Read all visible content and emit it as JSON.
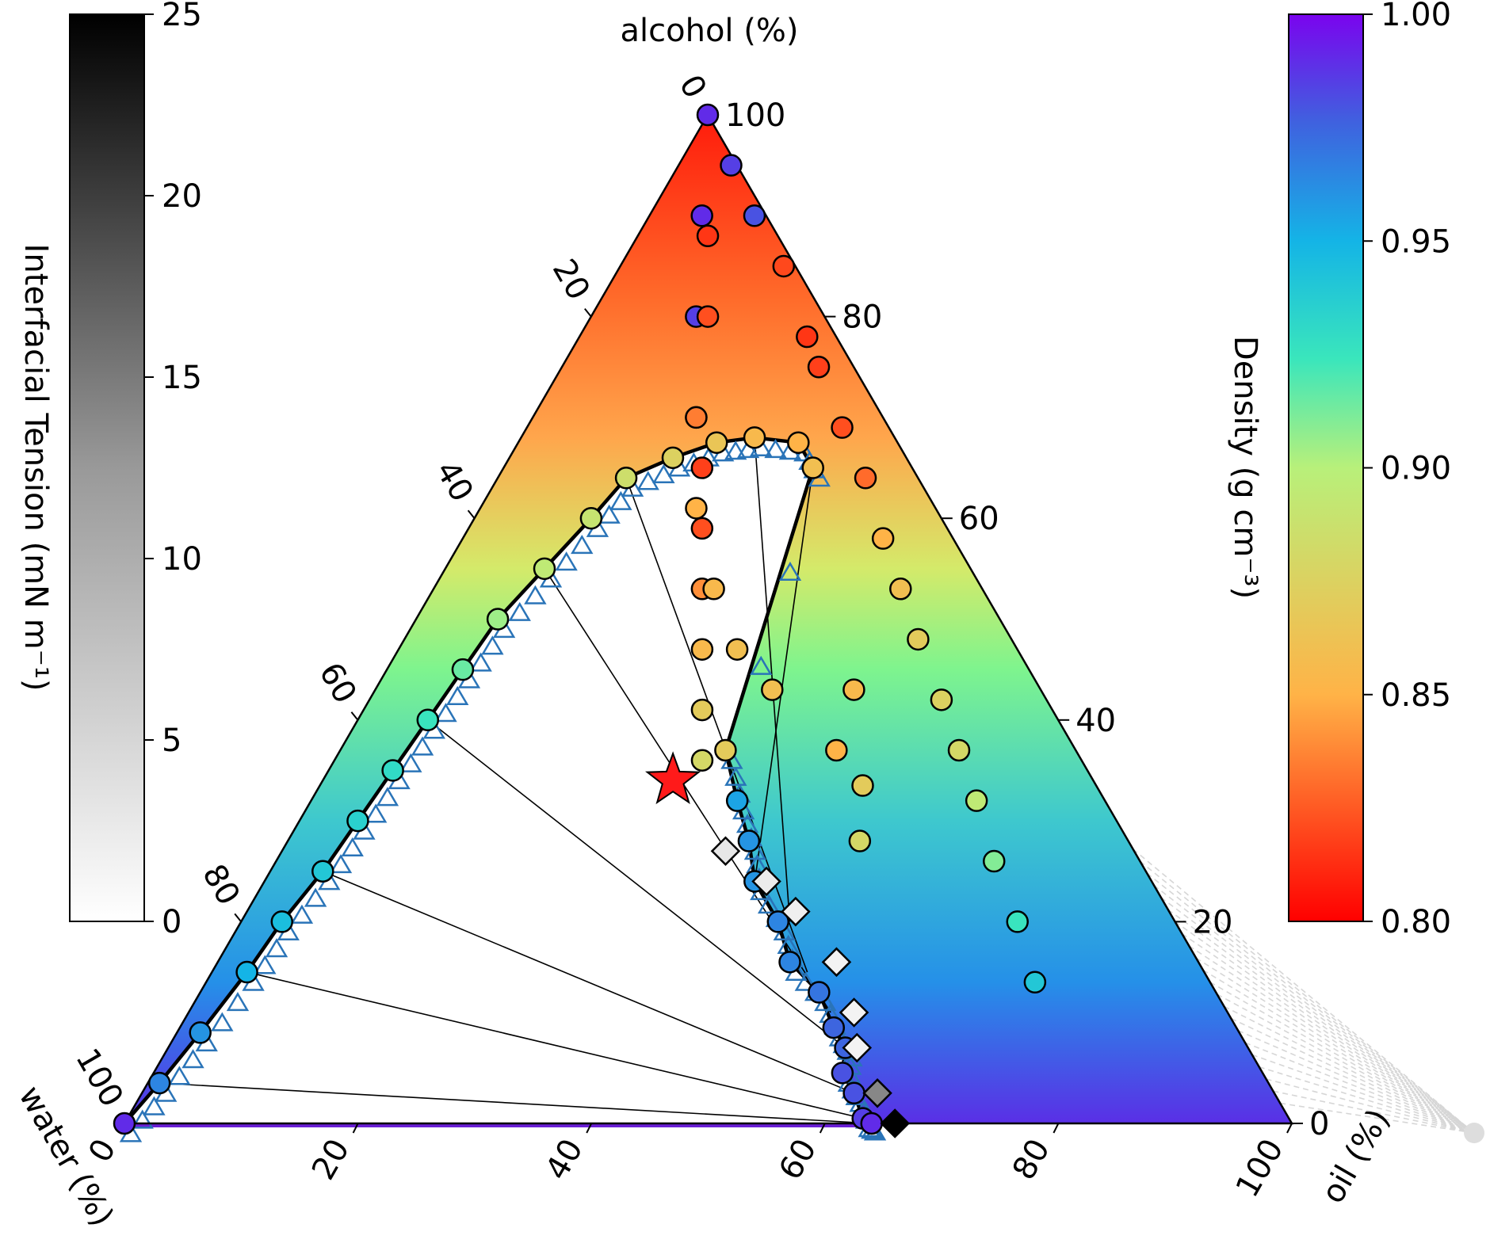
{
  "chart_data": {
    "type": "scatter",
    "subtype": "ternary",
    "axes": {
      "top": {
        "label": "alcohol (%)",
        "ticks": [
          0,
          20,
          40,
          60,
          80,
          100
        ],
        "range": [
          0,
          100
        ]
      },
      "left": {
        "label": "water (%)",
        "ticks": [
          0,
          20,
          40,
          60,
          80,
          100
        ],
        "range": [
          0,
          100
        ]
      },
      "right": {
        "label": "oil (%)",
        "ticks": [
          0,
          20,
          40,
          60,
          80,
          100
        ],
        "range": [
          0,
          100
        ]
      }
    },
    "colorbars": [
      {
        "label": "Interfacial Tension (mN m⁻¹)",
        "ticks": [
          "0",
          "5",
          "10",
          "15",
          "20",
          "25"
        ],
        "range": [
          0,
          25
        ],
        "colormap": "grey"
      },
      {
        "label": "Density (g cm⁻³)",
        "ticks": [
          "0.80",
          "0.85",
          "0.90",
          "0.95",
          "1.00"
        ],
        "range": [
          0.8,
          1.0
        ],
        "colormap": "rainbow"
      }
    ],
    "colors": {
      "binodal": "#000000",
      "triangles": "#2a74b8",
      "star": "#ff1a1a",
      "tieline": "#000000",
      "projection": "#d6d6d6"
    },
    "series": [
      {
        "kind": "edge-circle",
        "points": [
          {
            "oil": 0,
            "alcohol": 100,
            "density": 0.99
          },
          {
            "oil": 4.5,
            "alcohol": 95,
            "density": 0.985
          },
          {
            "oil": 9,
            "alcohol": 90,
            "density": 0.98
          },
          {
            "oil": 14,
            "alcohol": 85,
            "density": 0.82
          },
          {
            "oil": 19.5,
            "alcohol": 78,
            "density": 0.815
          },
          {
            "oil": 22,
            "alcohol": 75,
            "density": 0.818
          },
          {
            "oil": 27,
            "alcohol": 69,
            "density": 0.822
          },
          {
            "oil": 31.5,
            "alcohol": 64,
            "density": 0.83
          },
          {
            "oil": 36,
            "alcohol": 58,
            "density": 0.85
          },
          {
            "oil": 40,
            "alcohol": 53,
            "density": 0.86
          },
          {
            "oil": 44,
            "alcohol": 48,
            "density": 0.87
          },
          {
            "oil": 49,
            "alcohol": 42,
            "density": 0.875
          },
          {
            "oil": 53,
            "alcohol": 37,
            "density": 0.88
          },
          {
            "oil": 57,
            "alcohol": 32,
            "density": 0.895
          },
          {
            "oil": 61.5,
            "alcohol": 26,
            "density": 0.91
          },
          {
            "oil": 66.5,
            "alcohol": 20,
            "density": 0.925
          },
          {
            "oil": 71,
            "alcohol": 14,
            "density": 0.94
          },
          {
            "oil": 4.5,
            "alcohol": 90,
            "density": 0.99
          },
          {
            "oil": 9,
            "alcohol": 80,
            "density": 0.985
          },
          {
            "oil": 14,
            "alcohol": 70,
            "density": 0.82
          },
          {
            "oil": 17,
            "alcohol": 65,
            "density": 0.818
          },
          {
            "oil": 20,
            "alcohol": 59,
            "density": 0.822
          },
          {
            "oil": 23,
            "alcohol": 53,
            "density": 0.84
          },
          {
            "oil": 26,
            "alcohol": 47,
            "density": 0.855
          },
          {
            "oil": 29,
            "alcohol": 41,
            "density": 0.87
          },
          {
            "oil": 31.5,
            "alcohol": 36,
            "density": 0.88
          }
        ]
      },
      {
        "kind": "interior-circle",
        "points": [
          {
            "oil": 6,
            "alcohol": 88,
            "density": 0.815
          },
          {
            "oil": 10,
            "alcohol": 80,
            "density": 0.822
          },
          {
            "oil": 14,
            "alcohol": 70,
            "density": 0.835
          },
          {
            "oil": 18.5,
            "alcohol": 61,
            "density": 0.85
          },
          {
            "oil": 24,
            "alcohol": 53,
            "density": 0.855
          },
          {
            "oil": 29,
            "alcohol": 47,
            "density": 0.86
          },
          {
            "oil": 34,
            "alcohol": 43,
            "density": 0.86
          },
          {
            "oil": 41,
            "alcohol": 43,
            "density": 0.855
          },
          {
            "oil": 42.5,
            "alcohol": 37,
            "density": 0.85
          },
          {
            "oil": 46.5,
            "alcohol": 33.5,
            "density": 0.87
          },
          {
            "oil": 49,
            "alcohol": 28,
            "density": 0.88
          }
        ]
      },
      {
        "kind": "binodal-circle",
        "points": [
          {
            "oil": 0,
            "alcohol": 0,
            "density": 0.99
          },
          {
            "oil": 1,
            "alcohol": 4,
            "density": 0.965
          },
          {
            "oil": 2,
            "alcohol": 9,
            "density": 0.96
          },
          {
            "oil": 3,
            "alcohol": 15,
            "density": 0.95
          },
          {
            "oil": 3.5,
            "alcohol": 20,
            "density": 0.945
          },
          {
            "oil": 4.5,
            "alcohol": 25,
            "density": 0.94
          },
          {
            "oil": 5,
            "alcohol": 30,
            "density": 0.935
          },
          {
            "oil": 5.5,
            "alcohol": 35,
            "density": 0.93
          },
          {
            "oil": 6,
            "alcohol": 40,
            "density": 0.925
          },
          {
            "oil": 6.5,
            "alcohol": 45,
            "density": 0.915
          },
          {
            "oil": 7,
            "alcohol": 50,
            "density": 0.905
          },
          {
            "oil": 8.5,
            "alcohol": 55,
            "density": 0.895
          },
          {
            "oil": 10,
            "alcohol": 60,
            "density": 0.89
          },
          {
            "oil": 11,
            "alcohol": 64,
            "density": 0.885
          },
          {
            "oil": 14,
            "alcohol": 66,
            "density": 0.875
          },
          {
            "oil": 17,
            "alcohol": 67.5,
            "density": 0.865
          },
          {
            "oil": 20,
            "alcohol": 68,
            "density": 0.855
          },
          {
            "oil": 24,
            "alcohol": 67.5,
            "density": 0.85
          },
          {
            "oil": 26.5,
            "alcohol": 65,
            "density": 0.86
          },
          {
            "oil": 33,
            "alcohol": 37,
            "density": 0.87
          },
          {
            "oil": 36.5,
            "alcohol": 32,
            "density": 0.955
          },
          {
            "oil": 39.5,
            "alcohol": 28,
            "density": 0.96
          },
          {
            "oil": 42,
            "alcohol": 24,
            "density": 0.96
          },
          {
            "oil": 46,
            "alcohol": 20,
            "density": 0.965
          },
          {
            "oil": 49,
            "alcohol": 16,
            "density": 0.965
          },
          {
            "oil": 53,
            "alcohol": 13,
            "density": 0.97
          },
          {
            "oil": 56,
            "alcohol": 9.5,
            "density": 0.975
          },
          {
            "oil": 58,
            "alcohol": 7.5,
            "density": 0.975
          },
          {
            "oil": 59,
            "alcohol": 5,
            "density": 0.98
          },
          {
            "oil": 61,
            "alcohol": 3,
            "density": 0.98
          },
          {
            "oil": 63,
            "alcohol": 0.5,
            "density": 0.985
          },
          {
            "oil": 64,
            "alcohol": 0,
            "density": 0.99
          }
        ]
      },
      {
        "kind": "interfacial-tension-diamond",
        "points": [
          {
            "oil": 38,
            "alcohol": 27,
            "tension": 3
          },
          {
            "oil": 43,
            "alcohol": 24,
            "tension": 2.5
          },
          {
            "oil": 47,
            "alcohol": 21,
            "tension": 2
          },
          {
            "oil": 53,
            "alcohol": 16,
            "tension": 1.5
          },
          {
            "oil": 57,
            "alcohol": 11,
            "tension": 1.5
          },
          {
            "oil": 59,
            "alcohol": 7.5,
            "tension": 1.5
          },
          {
            "oil": 63,
            "alcohol": 3,
            "tension": 14
          },
          {
            "oil": 66,
            "alcohol": 0,
            "tension": 25
          }
        ]
      },
      {
        "kind": "plait-point-star",
        "points": [
          {
            "oil": 30,
            "alcohol": 34
          }
        ]
      }
    ]
  }
}
